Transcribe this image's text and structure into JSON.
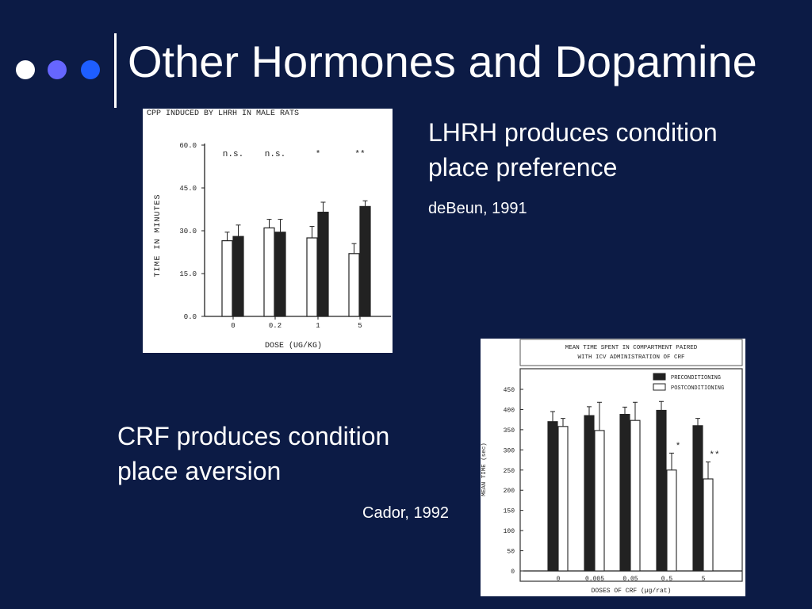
{
  "slide": {
    "title": "Other Hormones and Dopamine",
    "dot_colors": [
      "#ffffff",
      "#6666ff",
      "#1e5eff"
    ]
  },
  "text1": {
    "heading_line1": "LHRH produces condition",
    "heading_line2": "place preference",
    "citation": "deBeun, 1991"
  },
  "text2": {
    "heading_line1": "CRF produces condition",
    "heading_line2": "place aversion",
    "citation": "Cador, 1992"
  },
  "chart_data": [
    {
      "type": "bar",
      "title": "CPP INDUCED BY LHRH IN MALE RATS",
      "xlabel": "DOSE (UG/KG)",
      "ylabel": "TIME IN MINUTES",
      "ylim": [
        0,
        60
      ],
      "yticks": [
        "0.0",
        "15.0",
        "30.0",
        "45.0",
        "60.0"
      ],
      "categories": [
        "0",
        "0.2",
        "1",
        "5"
      ],
      "series": [
        {
          "fill": "white",
          "values": [
            26.5,
            31,
            27.5,
            22
          ],
          "errors": [
            3,
            3,
            4,
            3.5
          ]
        },
        {
          "fill": "black",
          "values": [
            28,
            29.5,
            36.5,
            38.5
          ],
          "errors": [
            4,
            4.5,
            3.5,
            2
          ]
        }
      ],
      "annotations": [
        "n.s.",
        "n.s.",
        "*",
        "**"
      ],
      "grid": false
    },
    {
      "type": "bar",
      "title_line1": "MEAN TIME SPENT IN COMPARTMENT PAIRED",
      "title_line2": "WITH ICV ADMINISTRATION OF CRF",
      "xlabel": "DOSES OF CRF (µg/rat)",
      "ylabel": "MEAN TIME (sec)",
      "ylim": [
        0,
        450
      ],
      "yticks": [
        "0",
        "50",
        "100",
        "150",
        "200",
        "250",
        "300",
        "350",
        "400",
        "450"
      ],
      "categories": [
        "0",
        "0.005",
        "0.05",
        "0.5",
        "5"
      ],
      "series": [
        {
          "name": "PRECONDITIONING",
          "fill": "black",
          "values": [
            370,
            385,
            388,
            398,
            360
          ],
          "errors": [
            25,
            22,
            18,
            22,
            18
          ]
        },
        {
          "name": "POSTCONDITIONING",
          "fill": "white",
          "values": [
            358,
            348,
            373,
            250,
            228
          ],
          "errors": [
            20,
            70,
            45,
            42,
            42
          ]
        }
      ],
      "annotations": [
        "",
        "",
        "",
        "*",
        "**"
      ],
      "legend": "top-right",
      "grid": false
    }
  ]
}
